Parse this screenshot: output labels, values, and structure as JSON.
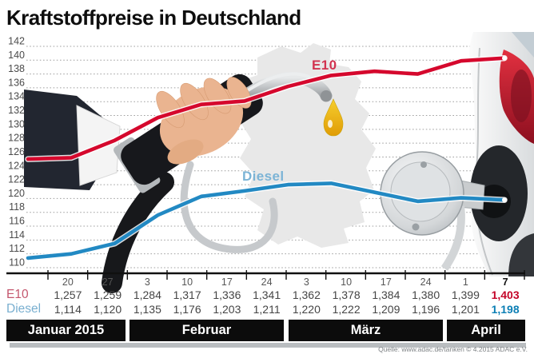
{
  "title": "Kraftstoffpreise in Deutschland",
  "source": "Quelle: www.adac.de/tanken   © 4.2015   ADAC e.V.",
  "chart_data": {
    "type": "line",
    "title": "Kraftstoffpreise in Deutschland",
    "ylabel": "",
    "xlabel": "",
    "ylim": [
      110,
      142
    ],
    "y_ticks": [
      142,
      140,
      138,
      136,
      134,
      132,
      130,
      128,
      126,
      124,
      122,
      120,
      118,
      116,
      114,
      112,
      110
    ],
    "grid": "dotted-horizontal",
    "x_dates": [
      "20",
      "27",
      "3",
      "10",
      "17",
      "24",
      "3",
      "10",
      "17",
      "24",
      "1",
      "7"
    ],
    "months": [
      {
        "label": "Januar 2015",
        "weeks": 2
      },
      {
        "label": "Februar",
        "weeks": 4
      },
      {
        "label": "März",
        "weeks": 4
      },
      {
        "label": "April",
        "weeks": 2
      }
    ],
    "series": [
      {
        "name": "E10",
        "color": "#d5082d",
        "values_eur_per_l": [
          1.257,
          1.259,
          1.284,
          1.317,
          1.336,
          1.341,
          1.362,
          1.378,
          1.384,
          1.38,
          1.399,
          1.403
        ],
        "display": [
          "1,257",
          "1,259",
          "1,284",
          "1,317",
          "1,336",
          "1,341",
          "1,362",
          "1,378",
          "1,384",
          "1,380",
          "1,399",
          "1,403"
        ]
      },
      {
        "name": "Diesel",
        "color": "#2289c3",
        "values_eur_per_l": [
          1.114,
          1.12,
          1.135,
          1.176,
          1.203,
          1.211,
          1.22,
          1.222,
          1.209,
          1.196,
          1.201,
          1.198
        ],
        "display": [
          "1,114",
          "1,120",
          "1,135",
          "1,176",
          "1,203",
          "1,211",
          "1,220",
          "1,222",
          "1,209",
          "1,196",
          "1,201",
          "1,198"
        ]
      }
    ],
    "legend": "inline-labels"
  },
  "table": {
    "row_labels": [
      "E10",
      "Diesel"
    ],
    "last_column_highlighted": true
  },
  "colors": {
    "e10_line": "#d5082d",
    "diesel_line": "#2289c3",
    "e10_bold_value": "#c40428",
    "diesel_bold_value": "#0c7fb5",
    "axis": "#101010",
    "grid": "#a0a0a0",
    "band_bg": "#0c0c0c",
    "band_text": "#ffffff",
    "drop": "#f0b414",
    "map": "#e8e8e8"
  }
}
